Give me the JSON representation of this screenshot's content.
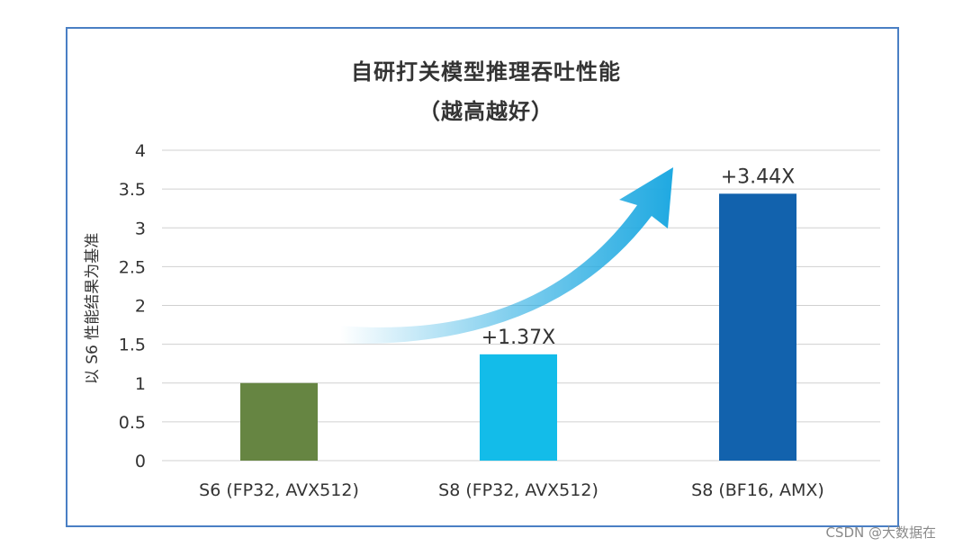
{
  "chart_data": {
    "type": "bar",
    "title": "自研打关模型推理吞吐性能",
    "subtitle": "（越高越好）",
    "ylabel": "以 S6 性能结果为基准",
    "xlabel": "",
    "categories": [
      "S6 (FP32, AVX512)",
      "S8 (FP32, AVX512)",
      "S8 (BF16, AMX)"
    ],
    "values": [
      1,
      1.37,
      3.44
    ],
    "data_labels": [
      "",
      "+1.37X",
      "+3.44X"
    ],
    "bar_colors": [
      "#668542",
      "#13bce9",
      "#1262ad"
    ],
    "ylim": [
      0,
      4
    ],
    "yticks": [
      0,
      0.5,
      1,
      1.5,
      2,
      2.5,
      3,
      3.5,
      4
    ],
    "ytick_labels": [
      "0",
      "0.5",
      "1",
      "1.5",
      "2",
      "2.5",
      "3",
      "3.5",
      "4"
    ],
    "grid": true,
    "arrow_color": "#1fa9e1"
  },
  "watermark": "CSDN @大数据在"
}
